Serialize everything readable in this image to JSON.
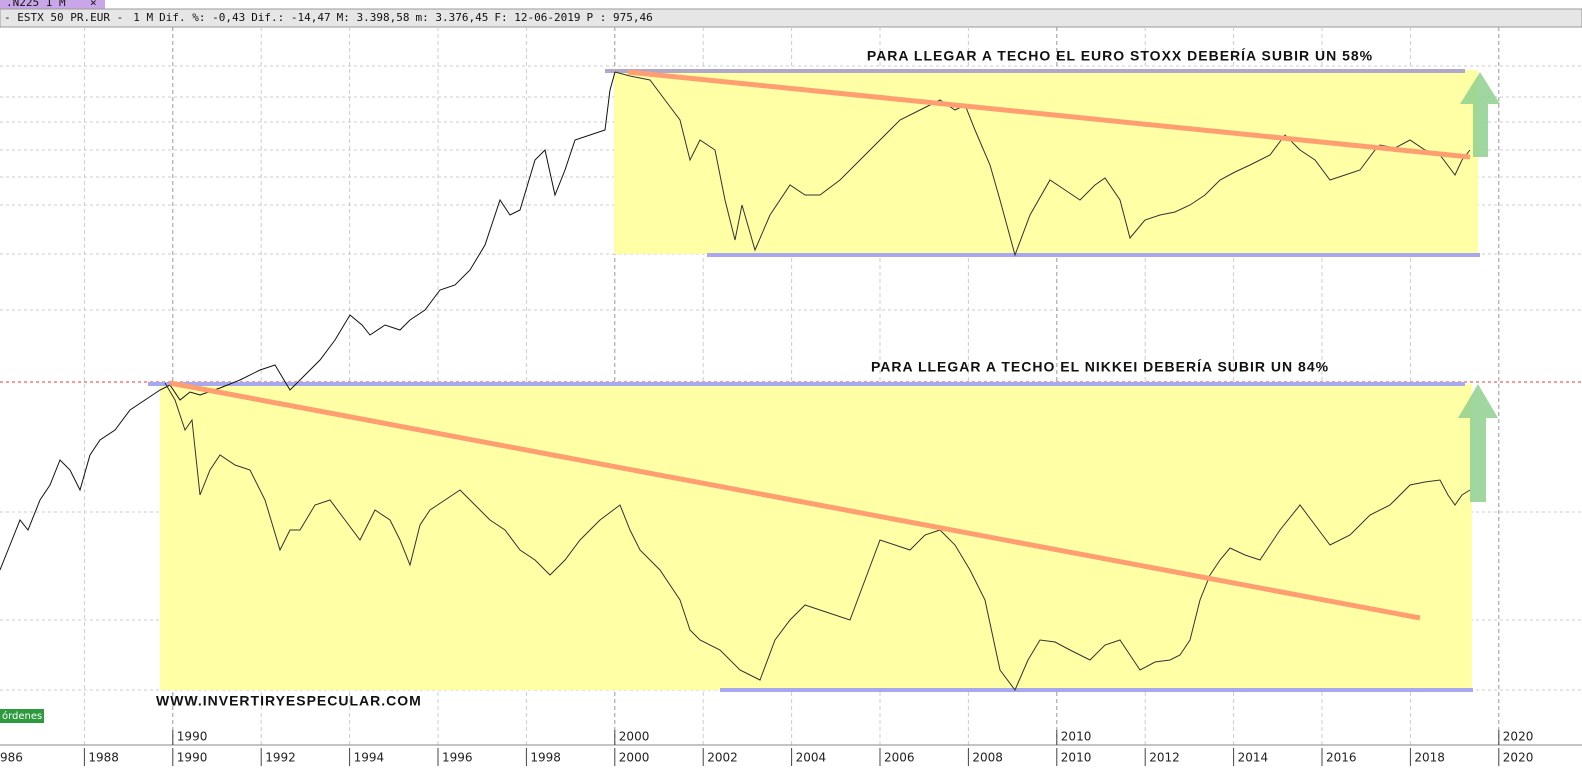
{
  "tab": {
    "label": ".N225 1 M"
  },
  "header": {
    "symbol": "- ESTX 50 PR.EUR -",
    "period": "1 M",
    "fields": [
      "Dif. %: -0,43",
      "Dif.: -14,47",
      "M: 3.398,58",
      "m: 3.376,45",
      "F: 12-06-2019"
    ],
    "price": "P : 975,46"
  },
  "annotations": {
    "top": "PARA LLEGAR A TECHO EL EURO STOXX DEBERÍA SUBIR UN 58%",
    "bottom": "PARA LLEGAR A TECHO EL NIKKEI  DEBERÍA SUBIR UN 84%"
  },
  "watermark": "WWW.INVERTIRYESPECULAR.COM",
  "button": "órdenes",
  "x_axis": {
    "decades": [
      "1990",
      "2000",
      "2010",
      "2020"
    ],
    "years": [
      "986",
      "1988",
      "1990",
      "1992",
      "1994",
      "1996",
      "1998",
      "2000",
      "2002",
      "2004",
      "2006",
      "2008",
      "2010",
      "2012",
      "2014",
      "2016",
      "2018",
      "2020"
    ]
  }
}
